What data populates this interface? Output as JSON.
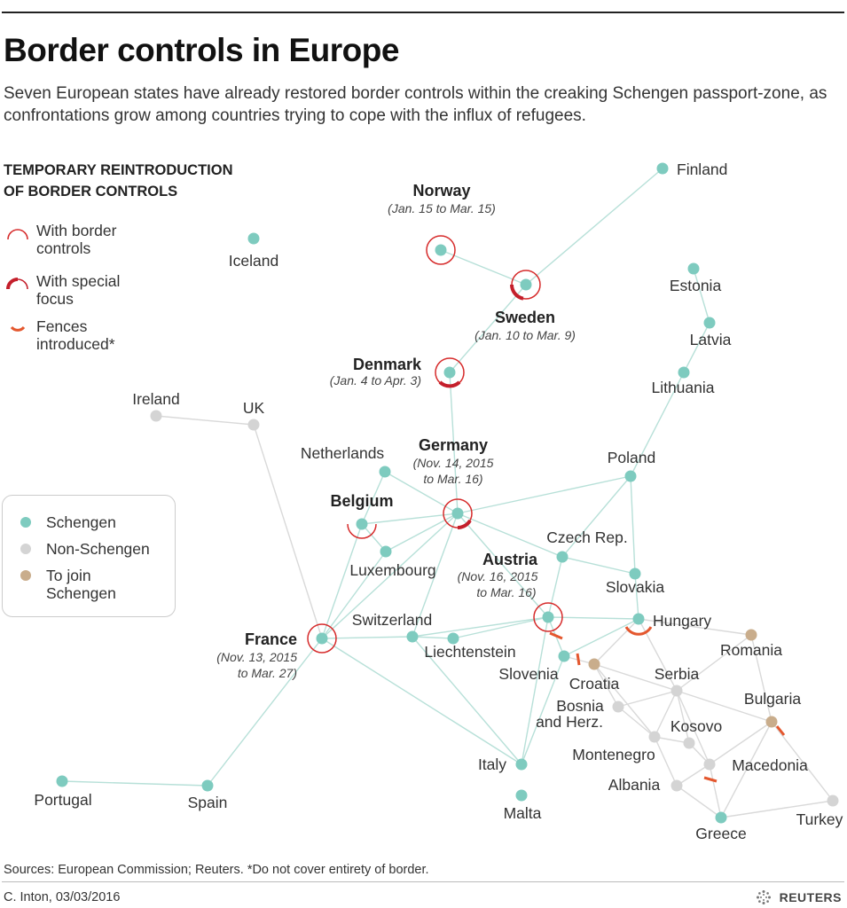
{
  "title": "Border controls in Europe",
  "subtitle": "Seven European states have already restored border controls within the creaking Schengen passport-zone, as confrontations grow among countries trying to cope with the influx of refugees.",
  "legend": {
    "heading_line1": "TEMPORARY REINTRODUCTION",
    "heading_line2": "OF BORDER CONTROLS",
    "with_border_line1": "With border",
    "with_border_line2": "controls",
    "special_line1": "With special",
    "special_line2": "focus",
    "fences_line1": "Fences",
    "fences_line2": "introduced*",
    "schengen": "Schengen",
    "non_schengen": "Non-Schengen",
    "to_join_line1": "To join",
    "to_join_line2": "Schengen"
  },
  "colors": {
    "schengen": "#7ecbbf",
    "non_schengen": "#d4d4d4",
    "to_join": "#c9ad8c",
    "border_ring": "#d62b2b",
    "special_arc": "#c41f2b",
    "fence": "#e4572e",
    "link_schengen": "#b7e0d8",
    "link_other": "#d9d9d9"
  },
  "countries": {
    "finland": "Finland",
    "norway": "Norway",
    "iceland": "Iceland",
    "sweden": "Sweden",
    "estonia": "Estonia",
    "latvia": "Latvia",
    "lithuania": "Lithuania",
    "denmark": "Denmark",
    "ireland": "Ireland",
    "uk": "UK",
    "netherlands": "Netherlands",
    "germany": "Germany",
    "poland": "Poland",
    "belgium": "Belgium",
    "luxembourg": "Luxembourg",
    "czech": "Czech Rep.",
    "austria": "Austria",
    "slovakia": "Slovakia",
    "switzerland": "Switzerland",
    "france": "France",
    "liechtenstein": "Liechtenstein",
    "hungary": "Hungary",
    "slovenia": "Slovenia",
    "croatia": "Croatia",
    "romania": "Romania",
    "serbia": "Serbia",
    "bosnia_line1": "Bosnia",
    "bosnia_line2": "and Herz.",
    "bulgaria": "Bulgaria",
    "kosovo": "Kosovo",
    "montenegro": "Montenegro",
    "macedonia": "Macedonia",
    "italy": "Italy",
    "albania": "Albania",
    "portugal": "Portugal",
    "spain": "Spain",
    "malta": "Malta",
    "greece": "Greece",
    "turkey": "Turkey"
  },
  "dates": {
    "norway": "(Jan. 15 to Mar. 15)",
    "sweden": "(Jan. 10 to Mar. 9)",
    "denmark": "(Jan. 4 to Apr. 3)",
    "germany_line1": "(Nov. 14, 2015",
    "germany_line2": "to Mar. 16)",
    "austria_line1": "(Nov. 16, 2015",
    "austria_line2": "to Mar. 16)",
    "france_line1": "(Nov. 13, 2015",
    "france_line2": "to Mar. 27)"
  },
  "footer": {
    "source": "Sources: European Commission; Reuters.  *Do not cover entirety of border.",
    "credit": "C. Inton, 03/03/2016",
    "brand": "REUTERS"
  }
}
